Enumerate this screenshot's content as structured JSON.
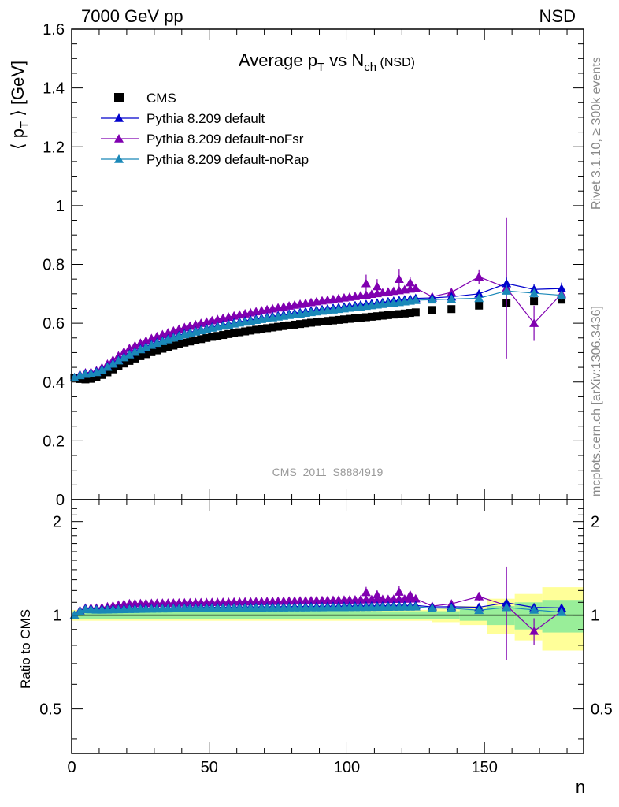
{
  "header": {
    "left": "7000 GeV pp",
    "right": "NSD"
  },
  "title": {
    "main": "Average p",
    "sub1": "T",
    "mid": " vs N",
    "sub2": "ch",
    "tail": " (NSD)"
  },
  "ylabel": {
    "pre": "⟨ p",
    "sub": "T",
    "post": " ⟩ [GeV]"
  },
  "ratio_label": "Ratio to CMS",
  "xlabel": "n",
  "watermark": "CMS_2011_S8884919",
  "side_text": {
    "top": "Rivet 3.1.10, ≥ 300k events",
    "bottom": "mcplots.cern.ch [arXiv:1306.3436]"
  },
  "legend": [
    {
      "label": "CMS",
      "marker": "square",
      "color": "#000000"
    },
    {
      "label": "Pythia 8.209 default",
      "marker": "triangle",
      "color": "#0000cc"
    },
    {
      "label": "Pythia 8.209 default-noFsr",
      "marker": "triangle",
      "color": "#8000b0"
    },
    {
      "label": "Pythia 8.209 default-noRap",
      "marker": "triangle",
      "color": "#1a88b8"
    }
  ],
  "chart_data": {
    "type": "scatter",
    "x_range": [
      0,
      186
    ],
    "main_ylim": [
      0,
      1.6
    ],
    "main_yticks": [
      "0",
      "0.2",
      "0.4",
      "0.6",
      "0.8",
      "1",
      "1.2",
      "1.4",
      "1.6"
    ],
    "ratio_ylim": [
      0.36,
      2.35
    ],
    "ratio_scale": "log",
    "ratio_yticks": [
      "0.5",
      "1",
      "2"
    ],
    "xticks": [
      "0",
      "50",
      "100",
      "150"
    ],
    "dense": {
      "x_start": 1,
      "x_end": 125,
      "x_step": 2
    },
    "cms_curve": [
      [
        1,
        0.415
      ],
      [
        4,
        0.408
      ],
      [
        8,
        0.412
      ],
      [
        12,
        0.428
      ],
      [
        16,
        0.448
      ],
      [
        20,
        0.468
      ],
      [
        25,
        0.488
      ],
      [
        30,
        0.505
      ],
      [
        40,
        0.532
      ],
      [
        50,
        0.552
      ],
      [
        60,
        0.568
      ],
      [
        70,
        0.582
      ],
      [
        80,
        0.594
      ],
      [
        90,
        0.605
      ],
      [
        100,
        0.614
      ],
      [
        110,
        0.623
      ],
      [
        120,
        0.632
      ],
      [
        126,
        0.638
      ]
    ],
    "cms_sparse": [
      [
        131,
        0.645
      ],
      [
        138,
        0.648
      ],
      [
        148,
        0.66
      ],
      [
        158,
        0.67
      ],
      [
        168,
        0.675
      ],
      [
        178,
        0.68
      ]
    ],
    "mc_ratio_curves": {
      "default": [
        [
          1,
          1.0
        ],
        [
          4,
          1.05
        ],
        [
          10,
          1.045
        ],
        [
          20,
          1.05
        ],
        [
          50,
          1.06
        ],
        [
          100,
          1.07
        ],
        [
          126,
          1.075
        ]
      ],
      "noFsr": [
        [
          1,
          1.0
        ],
        [
          4,
          1.055
        ],
        [
          10,
          1.055
        ],
        [
          20,
          1.09
        ],
        [
          50,
          1.1
        ],
        [
          100,
          1.12
        ],
        [
          126,
          1.13
        ]
      ],
      "noRap": [
        [
          1,
          1.0
        ],
        [
          4,
          1.045
        ],
        [
          10,
          1.04
        ],
        [
          20,
          1.045
        ],
        [
          50,
          1.055
        ],
        [
          100,
          1.06
        ],
        [
          126,
          1.065
        ]
      ]
    },
    "mc_sparse": {
      "default": [
        [
          131,
          0.686,
          0.01
        ],
        [
          138,
          0.69,
          0.012
        ],
        [
          148,
          0.7,
          0.012
        ],
        [
          158,
          0.735,
          0.02
        ],
        [
          168,
          0.715,
          0.018
        ],
        [
          178,
          0.718,
          0.02
        ]
      ],
      "noFsr": [
        [
          131,
          0.69,
          0.012
        ],
        [
          138,
          0.705,
          0.015
        ],
        [
          148,
          0.758,
          0.025
        ],
        [
          158,
          0.72,
          0.24
        ],
        [
          168,
          0.6,
          0.06
        ],
        [
          178,
          0.7,
          0.018
        ]
      ],
      "noRap": [
        [
          131,
          0.68,
          0.01
        ],
        [
          138,
          0.682,
          0.01
        ],
        [
          148,
          0.685,
          0.012
        ],
        [
          158,
          0.71,
          0.02
        ],
        [
          168,
          0.702,
          0.015
        ],
        [
          178,
          0.695,
          0.015
        ]
      ]
    },
    "noFsr_bumps": [
      [
        107,
        0.735,
        0.03
      ],
      [
        111,
        0.725,
        0.025
      ],
      [
        119,
        0.75,
        0.035
      ],
      [
        123,
        0.738,
        0.02
      ]
    ],
    "cms_band": [
      [
        0,
        131,
        0.03,
        0.04
      ],
      [
        131,
        141,
        0.03,
        0.05
      ],
      [
        141,
        151,
        0.04,
        0.07
      ],
      [
        151,
        161,
        0.07,
        0.13
      ],
      [
        161,
        171,
        0.1,
        0.17
      ],
      [
        171,
        186,
        0.12,
        0.23
      ]
    ]
  }
}
